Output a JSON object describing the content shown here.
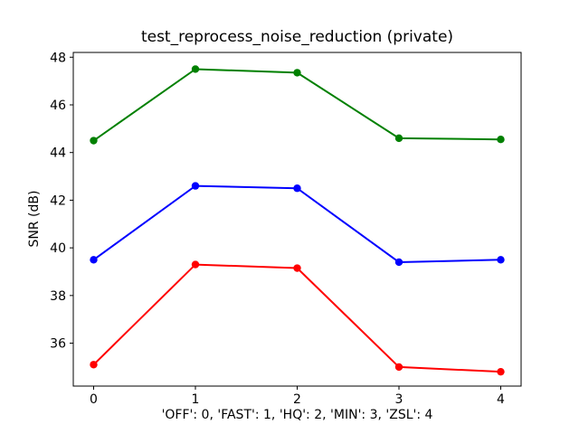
{
  "chart_data": {
    "type": "line",
    "title": "test_reprocess_noise_reduction (private)",
    "xlabel": "'OFF': 0, 'FAST': 1, 'HQ': 2, 'MIN': 3, 'ZSL': 4",
    "ylabel": "SNR (dB)",
    "x": [
      0,
      1,
      2,
      3,
      4
    ],
    "xtick_labels": [
      "0",
      "1",
      "2",
      "3",
      "4"
    ],
    "yticks": [
      36,
      38,
      40,
      42,
      44,
      46,
      48
    ],
    "xlim": [
      -0.2,
      4.2
    ],
    "ylim": [
      34.2,
      48.2
    ],
    "grid": false,
    "legend_position": "none",
    "marker": "circle",
    "background_color": "#ffffff",
    "axis_color": "#000000",
    "series": [
      {
        "name": "green",
        "color": "#008000",
        "values": [
          44.5,
          47.5,
          47.35,
          44.6,
          44.55
        ]
      },
      {
        "name": "blue",
        "color": "#0000ff",
        "values": [
          39.5,
          42.6,
          42.5,
          39.4,
          39.5
        ]
      },
      {
        "name": "red",
        "color": "#ff0000",
        "values": [
          35.1,
          39.3,
          39.15,
          35.0,
          34.8
        ]
      }
    ]
  }
}
